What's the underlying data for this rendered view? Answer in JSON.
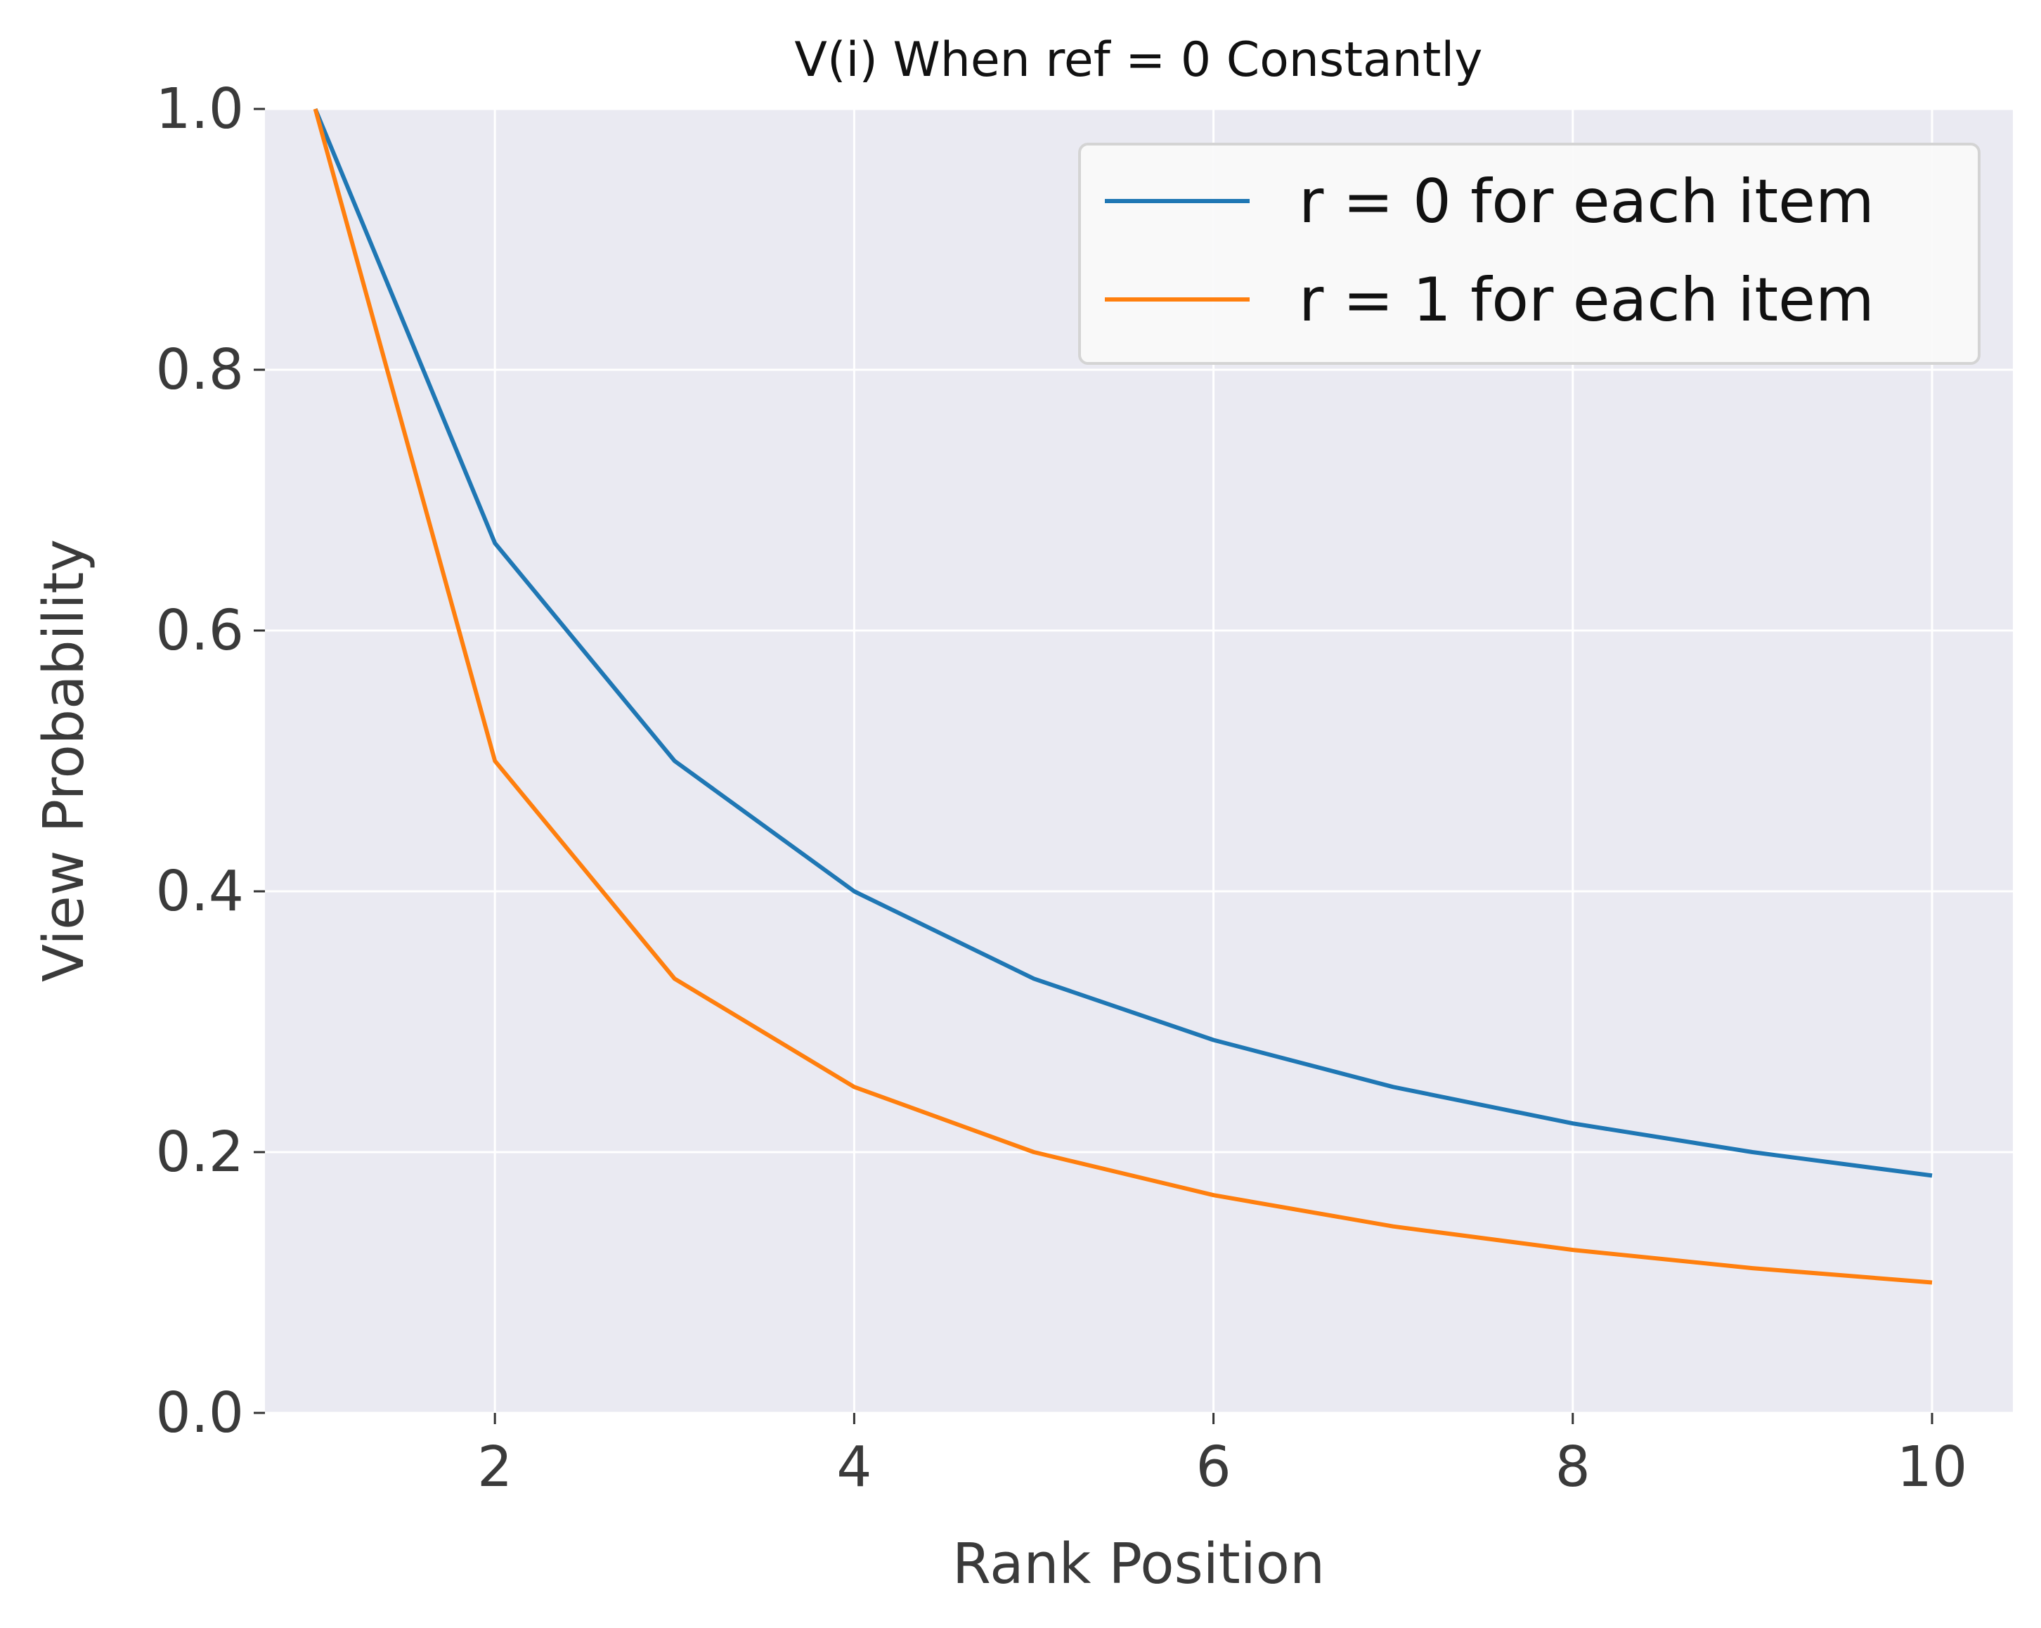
{
  "chart_data": {
    "type": "line",
    "title": "V(i) When ref = 0 Constantly",
    "xlabel": "Rank Position",
    "ylabel": "View Probability",
    "xlim": [
      0.72,
      10.45
    ],
    "ylim": [
      0.0,
      1.0
    ],
    "xticks": [
      2,
      4,
      6,
      8,
      10
    ],
    "yticks": [
      0.0,
      0.2,
      0.4,
      0.6,
      0.8,
      1.0
    ],
    "xtick_labels": [
      "2",
      "4",
      "6",
      "8",
      "10"
    ],
    "ytick_labels": [
      "0.0",
      "0.2",
      "0.4",
      "0.6",
      "0.8",
      "1.0"
    ],
    "grid": true,
    "legend_position": "top-right",
    "x": [
      1,
      2,
      3,
      4,
      5,
      6,
      7,
      8,
      9,
      10
    ],
    "series": [
      {
        "name": "r = 0 for each item",
        "color": "#1f77b4",
        "values": [
          1.0,
          0.667,
          0.5,
          0.4,
          0.333,
          0.286,
          0.25,
          0.222,
          0.2,
          0.182
        ]
      },
      {
        "name": "r = 1 for each item",
        "color": "#ff7f0e",
        "values": [
          1.0,
          0.5,
          0.333,
          0.25,
          0.2,
          0.167,
          0.143,
          0.125,
          0.111,
          0.1
        ]
      }
    ]
  }
}
